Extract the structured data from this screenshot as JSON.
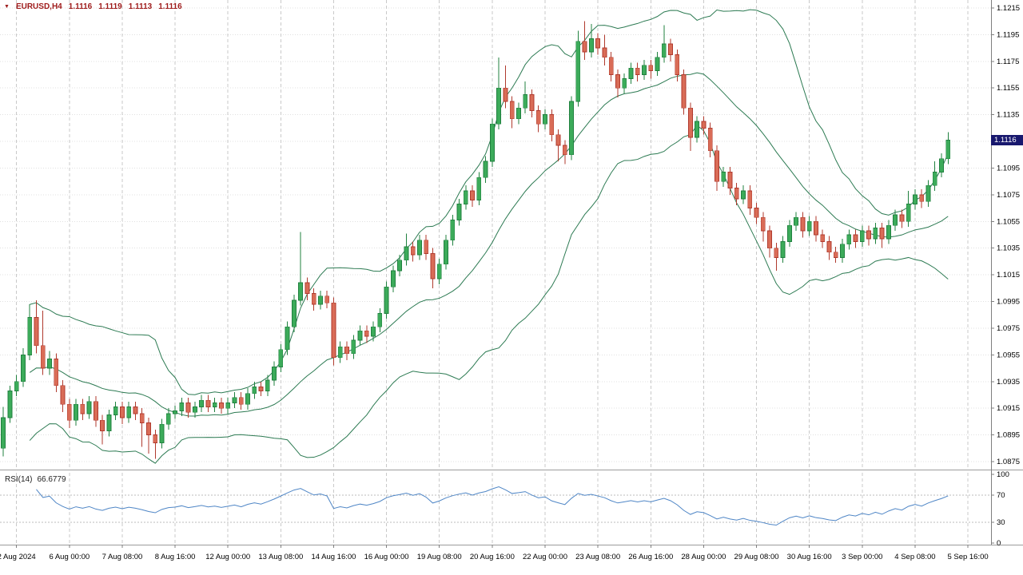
{
  "header": {
    "marker": "▼",
    "symbol_period": "EURUSD,H4",
    "open": "1.1116",
    "high": "1.1119",
    "low": "1.1113",
    "close": "1.1116"
  },
  "rsi_pane": {
    "label": "RSI(14)",
    "value": "66.6779"
  },
  "price_axis": {
    "current_price": "1.1116"
  },
  "colors": {
    "background": "#ffffff",
    "grid_h": "#e0e0e0",
    "grid_v": "#c9c9c9",
    "axis_line": "#7f7f7f",
    "axis_text": "#000000",
    "separator": "#9c9c9c",
    "up_fill": "#3cab5a",
    "up_border": "#20813f",
    "down_fill": "#d96c57",
    "down_border": "#b03a2e",
    "bollinger": "#2c7a52",
    "rsi_line": "#4f86c6",
    "rsi_levels": "#bbbbbb",
    "price_label_bg": "#18186e",
    "price_label_text": "#ffffff",
    "header_text": "#9e1a1a"
  },
  "chart_data": {
    "type": "candlestick",
    "title": "EURUSD,H4",
    "symbol": "EURUSD",
    "timeframe": "H4",
    "grid": true,
    "legend_position": "none",
    "visible_slots": 150,
    "current_price": 1.1116,
    "ohlc_display": {
      "open": 1.1116,
      "high": 1.1119,
      "low": 1.1113,
      "close": 1.1116
    },
    "price_scale": {
      "top": 1.1215,
      "bottom": 1.0875,
      "tick_step": 0.002,
      "ticks": [
        1.1215,
        1.1195,
        1.1175,
        1.1155,
        1.1135,
        1.1115,
        1.1095,
        1.1075,
        1.1055,
        1.1035,
        1.1015,
        1.0995,
        1.0975,
        1.0955,
        1.0935,
        1.0915,
        1.0895,
        1.0875
      ]
    },
    "time_ticks": [
      {
        "label": "2 Aug 2024",
        "index": 2
      },
      {
        "label": "6 Aug 00:00",
        "index": 10
      },
      {
        "label": "7 Aug 08:00",
        "index": 18
      },
      {
        "label": "8 Aug 16:00",
        "index": 26
      },
      {
        "label": "12 Aug 00:00",
        "index": 34
      },
      {
        "label": "13 Aug 08:00",
        "index": 42
      },
      {
        "label": "14 Aug 16:00",
        "index": 50
      },
      {
        "label": "16 Aug 00:00",
        "index": 58
      },
      {
        "label": "19 Aug 08:00",
        "index": 66
      },
      {
        "label": "20 Aug 16:00",
        "index": 74
      },
      {
        "label": "22 Aug 00:00",
        "index": 82
      },
      {
        "label": "23 Aug 08:00",
        "index": 90
      },
      {
        "label": "26 Aug 16:00",
        "index": 98
      },
      {
        "label": "28 Aug 00:00",
        "index": 106
      },
      {
        "label": "29 Aug 08:00",
        "index": 114
      },
      {
        "label": "30 Aug 16:00",
        "index": 122
      },
      {
        "label": "3 Sep 00:00",
        "index": 130
      },
      {
        "label": "4 Sep 08:00",
        "index": 138
      },
      {
        "label": "5 Sep 16:00",
        "index": 146
      }
    ],
    "indicators": {
      "bollinger_bands": {
        "period": 20,
        "deviation": 2
      },
      "rsi": {
        "period": 14,
        "current_value": 66.6779,
        "levels": [
          70,
          30
        ],
        "scale": [
          100,
          70,
          30,
          0
        ],
        "range": [
          0,
          100
        ]
      }
    },
    "candles": [
      [
        1.0885,
        1.0916,
        1.0879,
        1.0908
      ],
      [
        1.0908,
        1.0932,
        1.0904,
        1.0928
      ],
      [
        1.0928,
        1.094,
        1.0924,
        1.0935
      ],
      [
        1.0935,
        1.096,
        1.0931,
        1.0955
      ],
      [
        1.0955,
        1.0993,
        1.0951,
        1.0983
      ],
      [
        1.0983,
        1.0996,
        1.0956,
        1.0962
      ],
      [
        1.0962,
        1.0988,
        1.094,
        1.0945
      ],
      [
        1.0945,
        1.0958,
        1.094,
        1.0952
      ],
      [
        1.0952,
        1.0956,
        1.0927,
        1.0932
      ],
      [
        1.0932,
        1.0936,
        1.0912,
        1.0918
      ],
      [
        1.0918,
        1.0922,
        1.09,
        1.0906
      ],
      [
        1.0906,
        1.0922,
        1.0902,
        1.0918
      ],
      [
        1.0918,
        1.0922,
        1.0906,
        1.0911
      ],
      [
        1.0911,
        1.0924,
        1.0907,
        1.092
      ],
      [
        1.092,
        1.0924,
        1.0901,
        1.0906
      ],
      [
        1.0906,
        1.091,
        1.0888,
        1.0898
      ],
      [
        1.0898,
        1.0914,
        1.0894,
        1.091
      ],
      [
        1.091,
        1.092,
        1.0906,
        1.0916
      ],
      [
        1.0916,
        1.092,
        1.0903,
        1.0908
      ],
      [
        1.0908,
        1.092,
        1.0904,
        1.0916
      ],
      [
        1.0916,
        1.092,
        1.0906,
        1.0911
      ],
      [
        1.0911,
        1.0915,
        1.0886,
        1.0904
      ],
      [
        1.0904,
        1.0908,
        1.0881,
        1.0895
      ],
      [
        1.0895,
        1.0899,
        1.0877,
        1.0889
      ],
      [
        1.0889,
        1.0907,
        1.0885,
        1.0903
      ],
      [
        1.0903,
        1.0915,
        1.0899,
        1.0911
      ],
      [
        1.0911,
        1.0917,
        1.0907,
        1.0913
      ],
      [
        1.0913,
        1.0923,
        1.0909,
        1.0919
      ],
      [
        1.0919,
        1.0923,
        1.0908,
        1.0912
      ],
      [
        1.0912,
        1.092,
        1.0908,
        1.0916
      ],
      [
        1.0916,
        1.0925,
        1.0912,
        1.0921
      ],
      [
        1.0921,
        1.0925,
        1.0912,
        1.0916
      ],
      [
        1.0916,
        1.0923,
        1.0912,
        1.0919
      ],
      [
        1.0919,
        1.0923,
        1.0911,
        1.0915
      ],
      [
        1.0915,
        1.0923,
        1.0911,
        1.0919
      ],
      [
        1.0919,
        1.0927,
        1.0915,
        1.0923
      ],
      [
        1.0923,
        1.0927,
        1.0914,
        1.0918
      ],
      [
        1.0918,
        1.093,
        1.0914,
        1.0926
      ],
      [
        1.0926,
        1.0935,
        1.0922,
        1.0931
      ],
      [
        1.0931,
        1.0935,
        1.0924,
        1.0928
      ],
      [
        1.0928,
        1.094,
        1.0924,
        1.0936
      ],
      [
        1.0936,
        1.095,
        1.0932,
        1.0946
      ],
      [
        1.0946,
        1.0963,
        1.0942,
        1.0959
      ],
      [
        1.0959,
        1.098,
        1.0955,
        1.0976
      ],
      [
        1.0976,
        1.1,
        1.0972,
        1.0996
      ],
      [
        1.0996,
        1.1047,
        1.0992,
        1.1009
      ],
      [
        1.1009,
        1.1013,
        1.0996,
        1.1001
      ],
      [
        1.1001,
        1.1005,
        1.0988,
        1.0993
      ],
      [
        1.0993,
        1.1003,
        1.0989,
        1.0999
      ],
      [
        1.0999,
        1.1003,
        1.099,
        1.0994
      ],
      [
        1.0994,
        1.0998,
        1.0947,
        1.0953
      ],
      [
        1.0953,
        1.0965,
        1.0949,
        1.0961
      ],
      [
        1.0961,
        1.0965,
        1.0951,
        1.0956
      ],
      [
        1.0956,
        1.097,
        1.0952,
        1.0966
      ],
      [
        1.0966,
        1.0977,
        1.0962,
        1.0973
      ],
      [
        1.0973,
        1.0977,
        1.0964,
        1.0969
      ],
      [
        1.0969,
        1.098,
        1.0965,
        1.0976
      ],
      [
        1.0976,
        1.099,
        1.0972,
        1.0986
      ],
      [
        1.0986,
        1.101,
        1.0982,
        1.1006
      ],
      [
        1.1006,
        1.1022,
        1.1002,
        1.1018
      ],
      [
        1.1018,
        1.103,
        1.1014,
        1.1026
      ],
      [
        1.1026,
        1.1046,
        1.1022,
        1.1036
      ],
      [
        1.1036,
        1.104,
        1.1025,
        1.103
      ],
      [
        1.103,
        1.1045,
        1.1026,
        1.1041
      ],
      [
        1.1041,
        1.1045,
        1.1026,
        1.1031
      ],
      [
        1.1031,
        1.1035,
        1.1005,
        1.1012
      ],
      [
        1.1012,
        1.1027,
        1.1008,
        1.1023
      ],
      [
        1.1023,
        1.1045,
        1.1019,
        1.1041
      ],
      [
        1.1041,
        1.106,
        1.1037,
        1.1056
      ],
      [
        1.1056,
        1.1072,
        1.1052,
        1.1068
      ],
      [
        1.1068,
        1.1082,
        1.1064,
        1.1078
      ],
      [
        1.1078,
        1.1082,
        1.1066,
        1.1071
      ],
      [
        1.1071,
        1.1092,
        1.1067,
        1.1088
      ],
      [
        1.1088,
        1.1104,
        1.1084,
        1.11
      ],
      [
        1.11,
        1.1132,
        1.1096,
        1.1128
      ],
      [
        1.1128,
        1.1178,
        1.1124,
        1.1155
      ],
      [
        1.1155,
        1.1172,
        1.114,
        1.1145
      ],
      [
        1.1145,
        1.1149,
        1.1125,
        1.1132
      ],
      [
        1.1132,
        1.1144,
        1.1128,
        1.114
      ],
      [
        1.114,
        1.116,
        1.1136,
        1.115
      ],
      [
        1.115,
        1.1154,
        1.1133,
        1.1138
      ],
      [
        1.1138,
        1.1142,
        1.1122,
        1.1128
      ],
      [
        1.1128,
        1.1139,
        1.1124,
        1.1135
      ],
      [
        1.1135,
        1.1139,
        1.1115,
        1.112
      ],
      [
        1.112,
        1.1124,
        1.11,
        1.1112
      ],
      [
        1.1112,
        1.1116,
        1.1098,
        1.1105
      ],
      [
        1.1105,
        1.1149,
        1.1101,
        1.1145
      ],
      [
        1.1145,
        1.1198,
        1.1141,
        1.119
      ],
      [
        1.119,
        1.1205,
        1.1176,
        1.1182
      ],
      [
        1.1182,
        1.1203,
        1.1178,
        1.1192
      ],
      [
        1.1192,
        1.1196,
        1.118,
        1.1185
      ],
      [
        1.1185,
        1.1195,
        1.1172,
        1.1178
      ],
      [
        1.1178,
        1.1182,
        1.116,
        1.1165
      ],
      [
        1.1165,
        1.1169,
        1.1148,
        1.1155
      ],
      [
        1.1155,
        1.1166,
        1.1151,
        1.1162
      ],
      [
        1.1162,
        1.1174,
        1.1158,
        1.117
      ],
      [
        1.117,
        1.1174,
        1.116,
        1.1165
      ],
      [
        1.1165,
        1.1176,
        1.1161,
        1.1172
      ],
      [
        1.1172,
        1.1176,
        1.1162,
        1.1168
      ],
      [
        1.1168,
        1.1182,
        1.1164,
        1.1178
      ],
      [
        1.1178,
        1.1202,
        1.1174,
        1.1188
      ],
      [
        1.1188,
        1.1192,
        1.1175,
        1.118
      ],
      [
        1.118,
        1.1184,
        1.116,
        1.1165
      ],
      [
        1.1165,
        1.1169,
        1.1135,
        1.114
      ],
      [
        1.114,
        1.1144,
        1.1108,
        1.1118
      ],
      [
        1.1118,
        1.1134,
        1.1114,
        1.113
      ],
      [
        1.113,
        1.1134,
        1.112,
        1.1125
      ],
      [
        1.1125,
        1.1129,
        1.1103,
        1.1108
      ],
      [
        1.1108,
        1.1112,
        1.1078,
        1.1085
      ],
      [
        1.1085,
        1.1096,
        1.1081,
        1.1092
      ],
      [
        1.1092,
        1.1096,
        1.1075,
        1.108
      ],
      [
        1.108,
        1.1084,
        1.1067,
        1.1072
      ],
      [
        1.1072,
        1.1082,
        1.1068,
        1.1078
      ],
      [
        1.1078,
        1.1082,
        1.106,
        1.1065
      ],
      [
        1.1065,
        1.1069,
        1.1053,
        1.1058
      ],
      [
        1.1058,
        1.1062,
        1.104,
        1.1048
      ],
      [
        1.1048,
        1.1052,
        1.1028,
        1.1035
      ],
      [
        1.1035,
        1.1039,
        1.1018,
        1.1028
      ],
      [
        1.1028,
        1.1044,
        1.1024,
        1.104
      ],
      [
        1.104,
        1.1056,
        1.1036,
        1.1052
      ],
      [
        1.1052,
        1.1062,
        1.1048,
        1.1058
      ],
      [
        1.1058,
        1.1062,
        1.1043,
        1.1048
      ],
      [
        1.1048,
        1.1059,
        1.1044,
        1.1055
      ],
      [
        1.1055,
        1.1059,
        1.104,
        1.1045
      ],
      [
        1.1045,
        1.1049,
        1.1035,
        1.104
      ],
      [
        1.104,
        1.1044,
        1.1026,
        1.1032
      ],
      [
        1.1032,
        1.1036,
        1.1024,
        1.1028
      ],
      [
        1.1028,
        1.1042,
        1.1024,
        1.1038
      ],
      [
        1.1038,
        1.1049,
        1.1034,
        1.1045
      ],
      [
        1.1045,
        1.1049,
        1.1035,
        1.104
      ],
      [
        1.104,
        1.1052,
        1.1036,
        1.1048
      ],
      [
        1.1048,
        1.1052,
        1.1037,
        1.1042
      ],
      [
        1.1042,
        1.1054,
        1.1038,
        1.105
      ],
      [
        1.105,
        1.1054,
        1.1035,
        1.1042
      ],
      [
        1.1042,
        1.1056,
        1.1038,
        1.1052
      ],
      [
        1.1052,
        1.1064,
        1.1048,
        1.106
      ],
      [
        1.106,
        1.1064,
        1.105,
        1.1055
      ],
      [
        1.1055,
        1.1078,
        1.1051,
        1.1068
      ],
      [
        1.1068,
        1.1079,
        1.1064,
        1.1075
      ],
      [
        1.1075,
        1.1079,
        1.1065,
        1.107
      ],
      [
        1.107,
        1.1086,
        1.1066,
        1.1082
      ],
      [
        1.1082,
        1.11,
        1.1078,
        1.1092
      ],
      [
        1.1092,
        1.1106,
        1.1088,
        1.1102
      ],
      [
        1.1102,
        1.1122,
        1.1098,
        1.1116
      ]
    ]
  }
}
